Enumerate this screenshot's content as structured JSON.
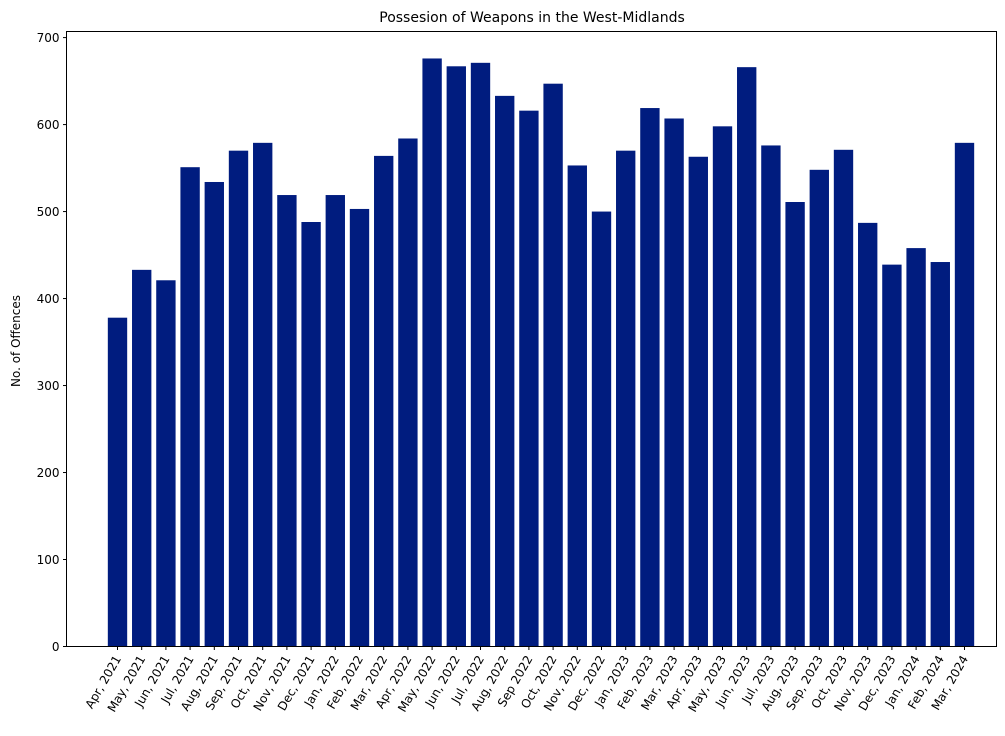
{
  "chart_data": {
    "type": "bar",
    "title": "Possesion of Weapons in the West-Midlands",
    "xlabel": "",
    "ylabel": "No. of Offences",
    "ylim": [
      0,
      707
    ],
    "yticks": [
      0,
      100,
      200,
      300,
      400,
      500,
      600,
      700
    ],
    "grid": false,
    "bar_color": "#001c7f",
    "categories": [
      "Apr, 2021",
      "May, 2021",
      "Jun, 2021",
      "Jul, 2021",
      "Aug, 2021",
      "Sep, 2021",
      "Oct, 2021",
      "Nov, 2021",
      "Dec, 2021",
      "Jan, 2022",
      "Feb, 2022",
      "Mar, 2022",
      "Apr, 2022",
      "May, 2022",
      "Jun, 2022",
      "Jul, 2022",
      "Aug, 2022",
      "Sep 2022",
      "Oct, 2022",
      "Nov, 2022",
      "Dec, 2022",
      "Jan, 2023",
      "Feb, 2023",
      "Mar, 2023",
      "Apr, 2023",
      "May, 2023",
      "Jun, 2023",
      "Jul, 2023",
      "Aug, 2023",
      "Sep, 2023",
      "Oct, 2023",
      "Nov, 2023",
      "Dec, 2023",
      "Jan, 2024",
      "Feb, 2024",
      "Mar, 2024"
    ],
    "values": [
      378,
      433,
      421,
      551,
      534,
      570,
      579,
      519,
      488,
      519,
      503,
      564,
      584,
      676,
      667,
      671,
      633,
      616,
      647,
      553,
      500,
      570,
      619,
      607,
      563,
      598,
      666,
      576,
      511,
      548,
      571,
      487,
      439,
      458,
      442,
      579
    ]
  }
}
